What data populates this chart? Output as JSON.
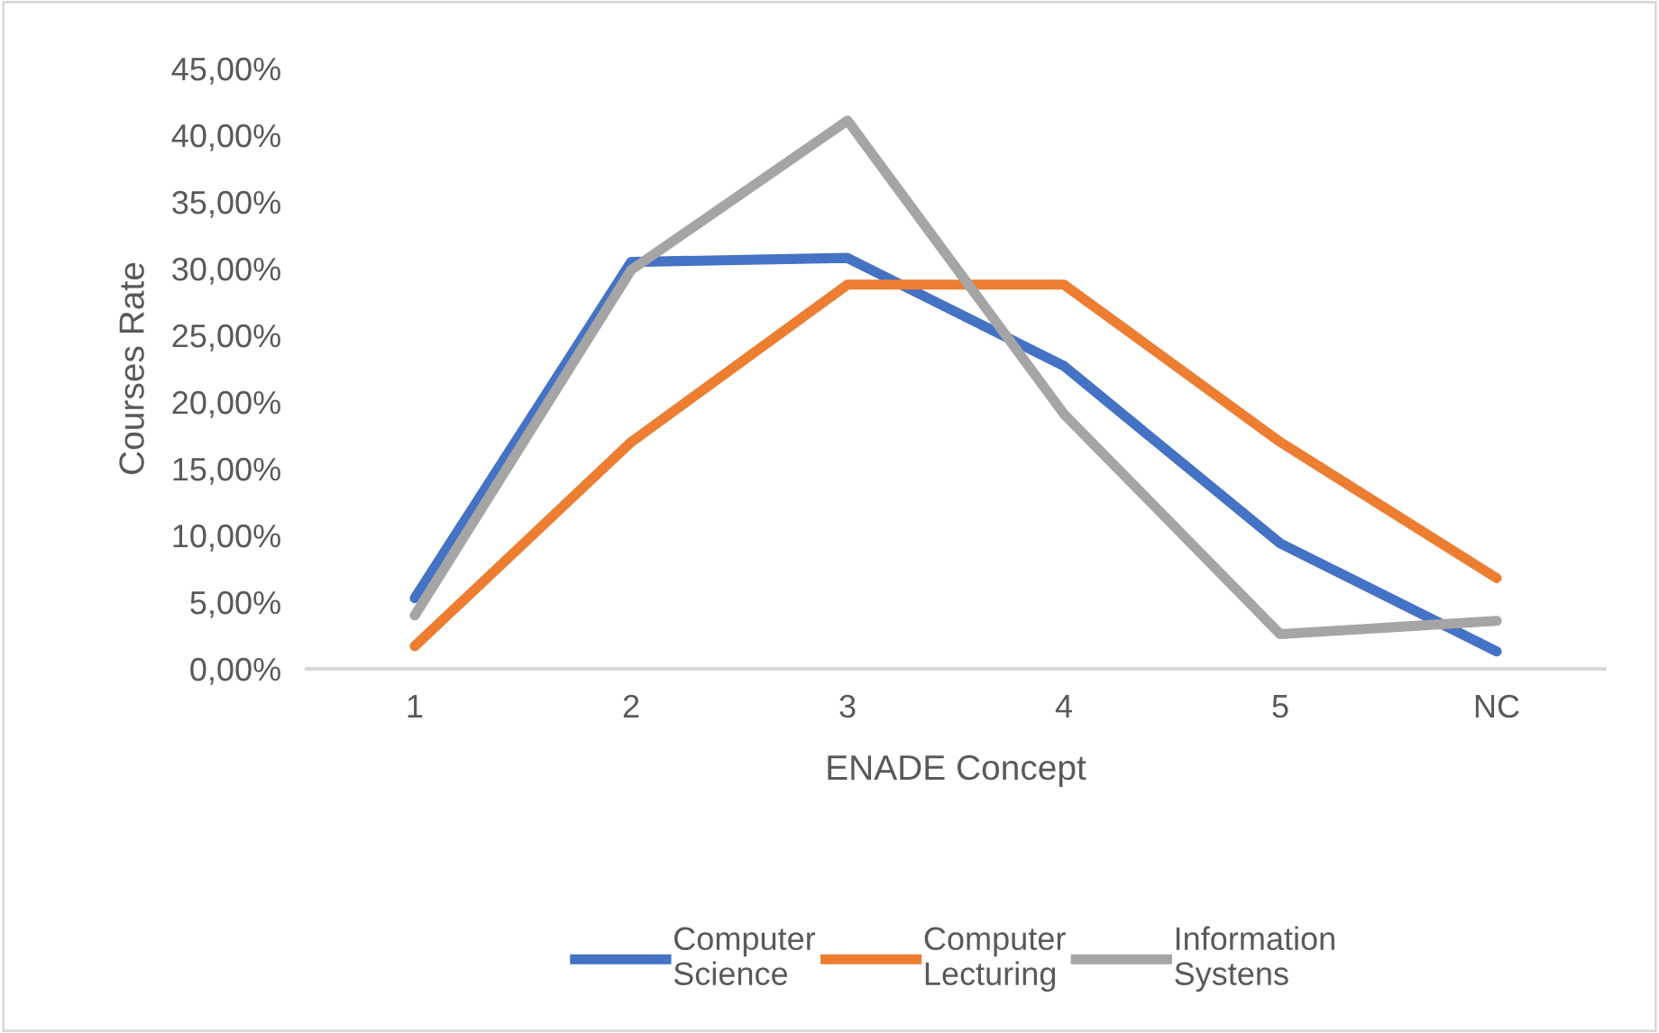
{
  "chart_data": {
    "type": "line",
    "xlabel": "ENADE Concept",
    "ylabel": "Courses Rate",
    "categories": [
      "1",
      "2",
      "3",
      "4",
      "5",
      "NC"
    ],
    "series": [
      {
        "name": "Computer\nScience",
        "color": "#4472c4",
        "values": [
          5.3,
          30.5,
          30.8,
          22.7,
          9.4,
          1.3
        ]
      },
      {
        "name": "Computer\nLecturing",
        "color": "#ed7d31",
        "values": [
          1.7,
          17.0,
          28.8,
          28.8,
          17.0,
          6.8
        ]
      },
      {
        "name": "Information\nSystens",
        "color": "#a5a5a5",
        "values": [
          4.0,
          29.9,
          41.1,
          19.1,
          2.6,
          3.6
        ]
      }
    ],
    "ylim": [
      0,
      45
    ],
    "yticks": [
      {
        "value": 0,
        "label": "0,00%"
      },
      {
        "value": 5,
        "label": "5,00%"
      },
      {
        "value": 10,
        "label": "10,00%"
      },
      {
        "value": 15,
        "label": "15,00%"
      },
      {
        "value": 20,
        "label": "20,00%"
      },
      {
        "value": 25,
        "label": "25,00%"
      },
      {
        "value": 30,
        "label": "30,00%"
      },
      {
        "value": 35,
        "label": "35,00%"
      },
      {
        "value": 40,
        "label": "40,00%"
      },
      {
        "value": 45,
        "label": "45,00%"
      }
    ],
    "legend": "bottom",
    "marker": "none",
    "line_style": "solid"
  }
}
